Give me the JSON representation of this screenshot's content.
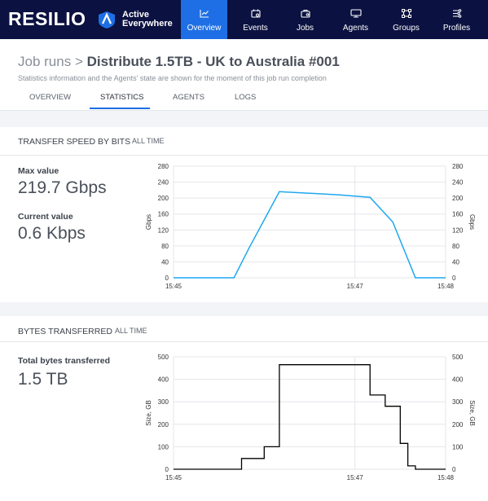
{
  "brand": {
    "name": "RESILIO",
    "product_line1": "Active",
    "product_line2": "Everywhere"
  },
  "nav": [
    {
      "label": "Overview",
      "icon": "chart-icon",
      "active": true
    },
    {
      "label": "Events",
      "icon": "calendar-icon",
      "active": false
    },
    {
      "label": "Jobs",
      "icon": "jobs-icon",
      "active": false
    },
    {
      "label": "Agents",
      "icon": "agents-icon",
      "active": false
    },
    {
      "label": "Groups",
      "icon": "groups-icon",
      "active": false
    },
    {
      "label": "Profiles",
      "icon": "profiles-icon",
      "active": false
    }
  ],
  "header": {
    "crumb_parent": "Job runs",
    "crumb_sep": ">",
    "crumb_current": "Distribute 1.5TB - UK to Australia #001",
    "subtitle": "Statistics information and the Agents' state are shown for the moment of this job run completion"
  },
  "tabs": [
    {
      "label": "OVERVIEW",
      "active": false
    },
    {
      "label": "STATISTICS",
      "active": true
    },
    {
      "label": "AGENTS",
      "active": false
    },
    {
      "label": "LOGS",
      "active": false
    }
  ],
  "speed": {
    "title": "TRANSFER SPEED BY BITS",
    "range": "ALL TIME",
    "max_label": "Max value",
    "max_value": "219.7 Gbps",
    "current_label": "Current value",
    "current_value": "0.6 Kbps"
  },
  "bytes": {
    "title": "BYTES TRANSFERRED",
    "range": "ALL TIME",
    "total_label": "Total bytes transferred",
    "total_value": "1.5 TB"
  },
  "colors": {
    "accent": "#1e6fe5",
    "nav_bg": "#0b1140",
    "speed_line": "#1ea7f0",
    "bytes_line": "#000000"
  },
  "chart_data": [
    {
      "type": "line",
      "x": [
        "15:45",
        "15:45:40",
        "15:45:50",
        "15:46:10",
        "15:46:50",
        "15:47:10",
        "15:47:25",
        "15:47:40",
        "15:47:45",
        "15:48"
      ],
      "values": [
        0,
        0,
        75,
        216,
        208,
        202,
        140,
        0,
        0,
        0
      ],
      "xticks": [
        "15:45",
        "15:47",
        "15:48"
      ],
      "ylabel": "Gbps",
      "ylim": [
        0,
        280
      ],
      "yticks": [
        0,
        40,
        80,
        120,
        160,
        200,
        240,
        280
      ],
      "grid": true
    },
    {
      "type": "line",
      "x": [
        "15:45",
        "15:45:40",
        "15:45:45",
        "15:45:55",
        "15:46:00",
        "15:46:10",
        "15:46:50",
        "15:47:10",
        "15:47:15",
        "15:47:20",
        "15:47:25",
        "15:47:30",
        "15:47:35",
        "15:47:40",
        "15:48"
      ],
      "values": [
        0,
        0,
        48,
        48,
        100,
        465,
        465,
        330,
        330,
        280,
        280,
        115,
        15,
        0,
        0
      ],
      "xticks": [
        "15:45",
        "15:47",
        "15:48"
      ],
      "ylabel": "Size, GB",
      "ylim": [
        0,
        500
      ],
      "yticks": [
        0,
        100,
        200,
        300,
        400,
        500
      ],
      "grid": true,
      "step": true
    }
  ]
}
